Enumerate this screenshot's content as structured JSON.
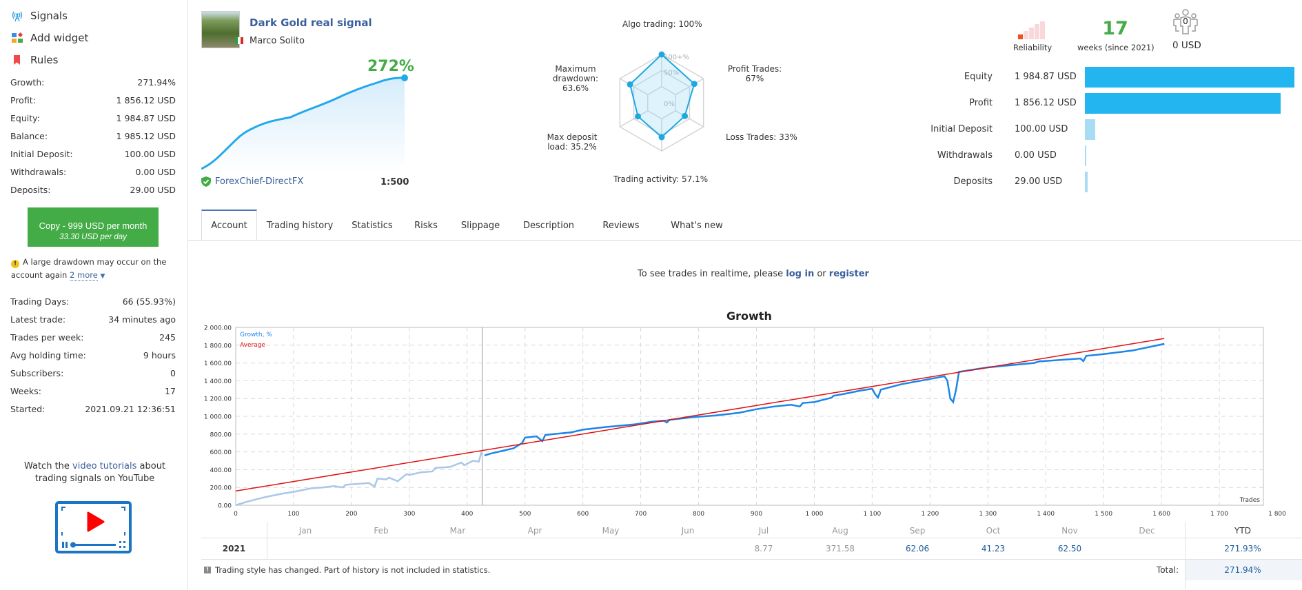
{
  "sidebar": {
    "nav": [
      {
        "label": "Signals",
        "icon": "signal-tower-icon"
      },
      {
        "label": "Add widget",
        "icon": "widget-grid-icon"
      },
      {
        "label": "Rules",
        "icon": "bookmark-icon"
      }
    ],
    "stats": [
      {
        "label": "Growth:",
        "value": "271.94%"
      },
      {
        "label": "Profit:",
        "value": "1 856.12 USD"
      },
      {
        "label": "Equity:",
        "value": "1 984.87 USD"
      },
      {
        "label": "Balance:",
        "value": "1 985.12 USD"
      },
      {
        "label": "Initial Deposit:",
        "value": "100.00 USD"
      },
      {
        "label": "Withdrawals:",
        "value": "0.00 USD"
      },
      {
        "label": "Deposits:",
        "value": "29.00 USD"
      }
    ],
    "copy_button": {
      "line1": "Copy - 999 USD per month",
      "line2": "33.30 USD per day"
    },
    "warning": {
      "text": "A large drawdown may occur on the account again",
      "more": "2 more"
    },
    "stats2": [
      {
        "label": "Trading Days:",
        "value": "66 (55.93%)"
      },
      {
        "label": "Latest trade:",
        "value": "34 minutes ago"
      },
      {
        "label": "Trades per week:",
        "value": "245"
      },
      {
        "label": "Avg holding time:",
        "value": "9 hours"
      },
      {
        "label": "Subscribers:",
        "value": "0"
      },
      {
        "label": "Weeks:",
        "value": "17"
      },
      {
        "label": "Started:",
        "value": "2021.09.21 12:36:51"
      }
    ],
    "tutorial": {
      "pre": "Watch the ",
      "link": "video tutorials",
      "post": " about trading signals on YouTube"
    }
  },
  "signal": {
    "title": "Dark Gold real signal",
    "author": "Marco Solito",
    "growth": "272%",
    "broker": "ForexChief-DirectFX",
    "leverage": "1:500"
  },
  "radar": {
    "axes": [
      {
        "label": "Algo trading: 100%",
        "value": 100
      },
      {
        "label": "Profit Trades:",
        "label2": "67%",
        "value": 67
      },
      {
        "label": "Loss Trades: 33%",
        "value": 33
      },
      {
        "label": "Trading activity: 57.1%",
        "value": 57.1
      },
      {
        "label": "Max deposit",
        "label2": "load: 35.2%",
        "value": 35.2
      },
      {
        "label": "Maximum",
        "label2": "drawdown:",
        "label3": "63.6%",
        "value": 63.6
      }
    ],
    "ticks": [
      "100+%",
      "50%",
      "0%"
    ],
    "color": "#1fa8e0"
  },
  "summary": {
    "reliability_label": "Reliability",
    "reliability_level": 1,
    "reliability_max": 5,
    "weeks": "17",
    "weeks_label": "weeks (since 2021)",
    "subscribers_count": "0",
    "subscribers_funds": "0 USD",
    "bars": [
      {
        "label": "Equity",
        "value": "1 984.87 USD",
        "amount": 1984.87,
        "color": "#22b5ef"
      },
      {
        "label": "Profit",
        "value": "1 856.12 USD",
        "amount": 1856.12,
        "color": "#22b5ef"
      },
      {
        "label": "Initial Deposit",
        "value": "100.00 USD",
        "amount": 100,
        "color": "#a8dcf5"
      },
      {
        "label": "Withdrawals",
        "value": "0.00 USD",
        "amount": 0,
        "color": "#a8dcf5"
      },
      {
        "label": "Deposits",
        "value": "29.00 USD",
        "amount": 29,
        "color": "#a8dcf5"
      }
    ]
  },
  "tabs": [
    "Account",
    "Trading history",
    "Statistics",
    "Risks",
    "Slippage",
    "Description",
    "Reviews",
    "What's new"
  ],
  "realtime": {
    "pre": "To see trades in realtime, please ",
    "login": "log in",
    "mid": " or ",
    "register": "register"
  },
  "chart_data": {
    "type": "line",
    "title": "Growth",
    "xlabel": "Trades",
    "ylabel": "",
    "xlim": [
      0,
      1800
    ],
    "ylim": [
      0,
      2000
    ],
    "x_ticks": [
      "0",
      "100",
      "200",
      "300",
      "400",
      "500",
      "600",
      "700",
      "800",
      "900",
      "1 000",
      "1 100",
      "1 200",
      "1 300",
      "1 400",
      "1 500",
      "1 600",
      "1 700",
      "1 800"
    ],
    "y_ticks": [
      "0.00",
      "200.00",
      "400.00",
      "600.00",
      "800.00",
      "1 000.00",
      "1 200.00",
      "1 400.00",
      "1 600.00",
      "1 800.00",
      "2 000.00"
    ],
    "grid": true,
    "legend": "top-left",
    "history_cutoff_trade": 426,
    "series": [
      {
        "name": "Growth, %",
        "color": "#1a85ea",
        "faded_color": "#a9c7e8",
        "x": [
          0,
          20,
          50,
          80,
          100,
          130,
          150,
          170,
          185,
          190,
          200,
          230,
          240,
          245,
          260,
          265,
          280,
          295,
          300,
          320,
          340,
          345,
          370,
          390,
          395,
          410,
          420,
          425,
          430,
          440,
          480,
          490,
          495,
          500,
          520,
          530,
          535,
          550,
          580,
          600,
          640,
          690,
          720,
          740,
          745,
          750,
          790,
          830,
          870,
          900,
          930,
          960,
          975,
          980,
          1000,
          1030,
          1033,
          1050,
          1080,
          1100,
          1105,
          1110,
          1115,
          1150,
          1200,
          1225,
          1230,
          1235,
          1240,
          1245,
          1250,
          1300,
          1380,
          1390,
          1395,
          1460,
          1465,
          1470,
          1500,
          1550,
          1605
        ],
        "y": [
          0,
          40,
          90,
          130,
          150,
          190,
          200,
          215,
          200,
          230,
          235,
          250,
          210,
          300,
          290,
          310,
          270,
          350,
          340,
          370,
          380,
          420,
          430,
          480,
          450,
          500,
          490,
          600,
          560,
          580,
          640,
          680,
          700,
          760,
          775,
          720,
          790,
          800,
          820,
          850,
          880,
          910,
          940,
          950,
          930,
          960,
          990,
          1010,
          1040,
          1080,
          1110,
          1130,
          1110,
          1150,
          1160,
          1210,
          1230,
          1250,
          1290,
          1310,
          1250,
          1210,
          1300,
          1360,
          1420,
          1450,
          1400,
          1200,
          1160,
          1300,
          1500,
          1550,
          1600,
          1620,
          1620,
          1650,
          1620,
          1680,
          1700,
          1740,
          1815
        ]
      },
      {
        "name": "Average",
        "color": "#e01010",
        "x": [
          0,
          1605
        ],
        "y": [
          160,
          1875
        ]
      }
    ]
  },
  "monthly": {
    "months": [
      "Jan",
      "Feb",
      "Mar",
      "Apr",
      "May",
      "Jun",
      "Jul",
      "Aug",
      "Sep",
      "Oct",
      "Nov",
      "Dec"
    ],
    "ytd_label": "YTD",
    "year": "2021",
    "values": [
      "",
      "",
      "",
      "",
      "",
      "",
      "8.77",
      "371.58",
      "62.06",
      "41.23",
      "62.50",
      ""
    ],
    "ytd": "271.93%",
    "total_label": "Total:",
    "total": "271.94%",
    "note": "Trading style has changed. Part of history is not included in statistics."
  }
}
